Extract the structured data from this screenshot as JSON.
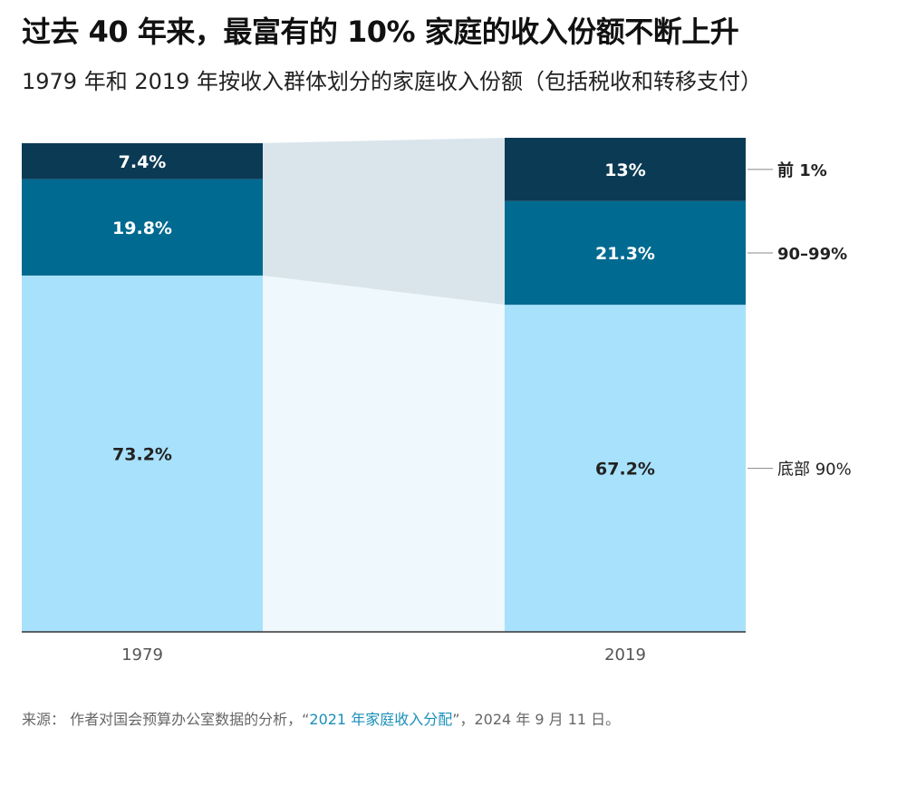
{
  "title": "过去 40 年来，最富有的 10% 家庭的收入份额不断上升",
  "subtitle": "1979 年和 2019 年按收入群体划分的家庭收入份额（包括税收和转移支付）",
  "source": {
    "prefix": "来源： 作者对国会预算办公室数据的分析，“",
    "link": "2021 年家庭收入分配",
    "suffix": "”，2024 年 9 月 11 日。"
  },
  "colors": {
    "bottom90": "#a8e1fb",
    "p90_99": "#006a90",
    "top1": "#0b3a55",
    "connector_bottom": "#eef8fd",
    "connector_top": "#d9e5eb",
    "axis": "#333333",
    "leader": "#888888"
  },
  "chart_data": {
    "type": "bar",
    "stacked": true,
    "categories": [
      "1979",
      "2019"
    ],
    "series": [
      {
        "name": "底部 90%",
        "values": [
          73.2,
          67.2
        ],
        "labels": [
          "73.2%",
          "67.2%"
        ]
      },
      {
        "name": "90–99%",
        "values": [
          19.8,
          21.3
        ],
        "labels": [
          "19.8%",
          "21.3%"
        ]
      },
      {
        "name": "前 1%",
        "values": [
          7.4,
          13
        ],
        "labels": [
          "7.4%",
          "13%"
        ]
      }
    ],
    "ylim": [
      0,
      101.5
    ],
    "legend_position": "right"
  }
}
